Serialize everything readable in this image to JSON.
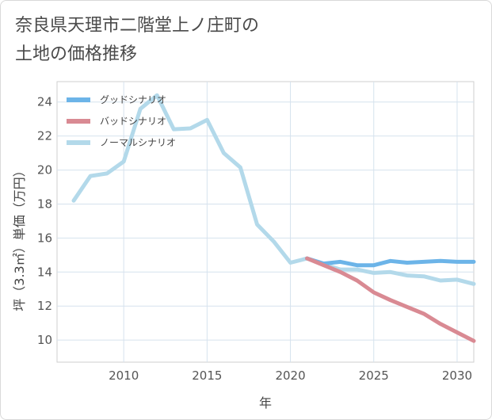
{
  "title": {
    "line1": "奈良県天理市二階堂上ノ庄町の",
    "line2": "土地の価格推移"
  },
  "chart_data": {
    "type": "line",
    "xlabel": "年",
    "ylabel": "坪（3.3㎡）単価（万円）",
    "xlim": [
      2006,
      2031
    ],
    "ylim": [
      8.7,
      25.2
    ],
    "x_ticks": [
      2010,
      2015,
      2020,
      2025,
      2030
    ],
    "y_ticks": [
      10,
      12,
      14,
      16,
      18,
      20,
      22,
      24
    ],
    "grid": true,
    "legend_position": "top-left",
    "series": [
      {
        "name": "グッドシナリオ",
        "color": "#6cb4e8",
        "x": [
          2021,
          2022,
          2023,
          2024,
          2025,
          2026,
          2027,
          2028,
          2029,
          2030,
          2031
        ],
        "y": [
          14.8,
          14.5,
          14.6,
          14.4,
          14.4,
          14.65,
          14.55,
          14.6,
          14.65,
          14.6,
          14.6
        ]
      },
      {
        "name": "バッドシナリオ",
        "color": "#d98a93",
        "x": [
          2021,
          2022,
          2023,
          2024,
          2025,
          2026,
          2027,
          2028,
          2029,
          2030,
          2031
        ],
        "y": [
          14.8,
          14.4,
          14.0,
          13.5,
          12.8,
          12.35,
          11.95,
          11.55,
          10.95,
          10.45,
          9.95
        ]
      },
      {
        "name": "ノーマルシナリオ",
        "color": "#b3d9ea",
        "x": [
          2007,
          2008,
          2009,
          2010,
          2011,
          2012,
          2013,
          2014,
          2015,
          2016,
          2017,
          2018,
          2019,
          2020,
          2021,
          2022,
          2023,
          2024,
          2025,
          2026,
          2027,
          2028,
          2029,
          2030,
          2031
        ],
        "y": [
          18.2,
          19.65,
          19.8,
          20.5,
          23.6,
          24.4,
          22.4,
          22.45,
          22.95,
          21.0,
          20.15,
          16.8,
          15.8,
          14.55,
          14.8,
          14.45,
          14.15,
          14.15,
          13.95,
          14.0,
          13.8,
          13.75,
          13.5,
          13.55,
          13.3
        ]
      }
    ]
  }
}
